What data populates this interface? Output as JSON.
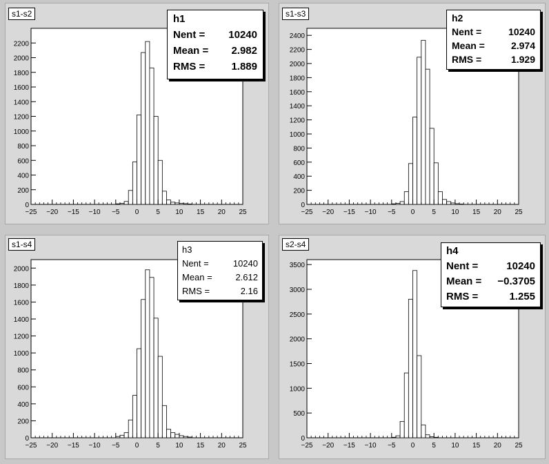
{
  "pads": [
    {
      "title": "s1-s2",
      "stats": {
        "name": "h1",
        "nent_label": "Nent",
        "nent": "10240",
        "mean_label": "Mean",
        "mean": "2.982",
        "rms_label": "RMS",
        "rms": "1.889"
      },
      "chart_data": {
        "type": "bar",
        "title": "s1-s2",
        "xlim": [
          -25,
          25
        ],
        "ylim": [
          0,
          2400
        ],
        "xticks": [
          "-25",
          "-20",
          "-15",
          "-10",
          "-5",
          "0",
          "5",
          "10",
          "15",
          "20",
          "25"
        ],
        "yticks": [
          "0",
          "200",
          "400",
          "600",
          "800",
          "1000",
          "1200",
          "1400",
          "1600",
          "1800",
          "2000",
          "2200"
        ],
        "bins": [
          [
            -2.5,
            40
          ],
          [
            -1.5,
            190
          ],
          [
            -0.5,
            580
          ],
          [
            0.5,
            1220
          ],
          [
            1.5,
            2070
          ],
          [
            2.5,
            2220
          ],
          [
            3.5,
            1860
          ],
          [
            4.5,
            1200
          ],
          [
            5.5,
            600
          ],
          [
            6.5,
            180
          ],
          [
            7.5,
            60
          ],
          [
            8.5,
            30
          ],
          [
            9.5,
            20
          ],
          [
            10.5,
            15
          ],
          [
            11.5,
            10
          ],
          [
            12.5,
            5
          ],
          [
            -3.5,
            15
          ],
          [
            -4.5,
            8
          ]
        ]
      }
    },
    {
      "title": "s1-s3",
      "stats": {
        "name": "h2",
        "nent_label": "Nent",
        "nent": "10240",
        "mean_label": "Mean",
        "mean": "2.974",
        "rms_label": "RMS",
        "rms": "1.929"
      },
      "chart_data": {
        "type": "bar",
        "title": "s1-s3",
        "xlim": [
          -25,
          25
        ],
        "ylim": [
          0,
          2500
        ],
        "xticks": [
          "-25",
          "-20",
          "-15",
          "-10",
          "-5",
          "0",
          "5",
          "10",
          "15",
          "20",
          "25"
        ],
        "yticks": [
          "0",
          "200",
          "400",
          "600",
          "800",
          "1000",
          "1200",
          "1400",
          "1600",
          "1800",
          "2000",
          "2200",
          "2400"
        ],
        "bins": [
          [
            -2.5,
            40
          ],
          [
            -1.5,
            180
          ],
          [
            -0.5,
            580
          ],
          [
            0.5,
            1240
          ],
          [
            1.5,
            2090
          ],
          [
            2.5,
            2330
          ],
          [
            3.5,
            1920
          ],
          [
            4.5,
            1080
          ],
          [
            5.5,
            590
          ],
          [
            6.5,
            180
          ],
          [
            7.5,
            70
          ],
          [
            8.5,
            40
          ],
          [
            9.5,
            20
          ],
          [
            10.5,
            10
          ],
          [
            11.5,
            5
          ],
          [
            -3.5,
            15
          ],
          [
            -4.5,
            8
          ]
        ]
      }
    },
    {
      "title": "s1-s4",
      "stats": {
        "name": "h3",
        "nent_label": "Nent",
        "nent": "10240",
        "mean_label": "Mean",
        "mean": "2.612",
        "rms_label": "RMS",
        "rms": "2.16"
      },
      "chart_data": {
        "type": "bar",
        "title": "s1-s4",
        "xlim": [
          -25,
          25
        ],
        "ylim": [
          0,
          2100
        ],
        "xticks": [
          "-25",
          "-20",
          "-15",
          "-10",
          "-5",
          "0",
          "5",
          "10",
          "15",
          "20",
          "25"
        ],
        "yticks": [
          "0",
          "200",
          "400",
          "600",
          "800",
          "1000",
          "1200",
          "1400",
          "1600",
          "1800",
          "2000"
        ],
        "bins": [
          [
            -4.5,
            15
          ],
          [
            -3.5,
            30
          ],
          [
            -2.5,
            60
          ],
          [
            -1.5,
            210
          ],
          [
            -0.5,
            500
          ],
          [
            0.5,
            1050
          ],
          [
            1.5,
            1630
          ],
          [
            2.5,
            1980
          ],
          [
            3.5,
            1890
          ],
          [
            4.5,
            1410
          ],
          [
            5.5,
            960
          ],
          [
            6.5,
            380
          ],
          [
            7.5,
            100
          ],
          [
            8.5,
            60
          ],
          [
            9.5,
            40
          ],
          [
            10.5,
            25
          ],
          [
            11.5,
            15
          ],
          [
            12.5,
            8
          ]
        ]
      }
    },
    {
      "title": "s2-s4",
      "stats": {
        "name": "h4",
        "nent_label": "Nent",
        "nent": "10240",
        "mean_label": "Mean",
        "mean": "−0.3705",
        "rms_label": "RMS",
        "rms": "1.255"
      },
      "chart_data": {
        "type": "bar",
        "title": "s2-s4",
        "xlim": [
          -25,
          25
        ],
        "ylim": [
          0,
          3600
        ],
        "xticks": [
          "-25",
          "-20",
          "-15",
          "-10",
          "-5",
          "0",
          "5",
          "10",
          "15",
          "20",
          "25"
        ],
        "yticks": [
          "0",
          "500",
          "1000",
          "1500",
          "2000",
          "2500",
          "3000",
          "3500"
        ],
        "bins": [
          [
            -3.5,
            40
          ],
          [
            -2.5,
            330
          ],
          [
            -1.5,
            1310
          ],
          [
            -0.5,
            2800
          ],
          [
            0.5,
            3380
          ],
          [
            1.5,
            1660
          ],
          [
            2.5,
            260
          ],
          [
            3.5,
            60
          ],
          [
            4.5,
            20
          ],
          [
            5.5,
            10
          ],
          [
            -4.5,
            10
          ]
        ]
      }
    }
  ]
}
